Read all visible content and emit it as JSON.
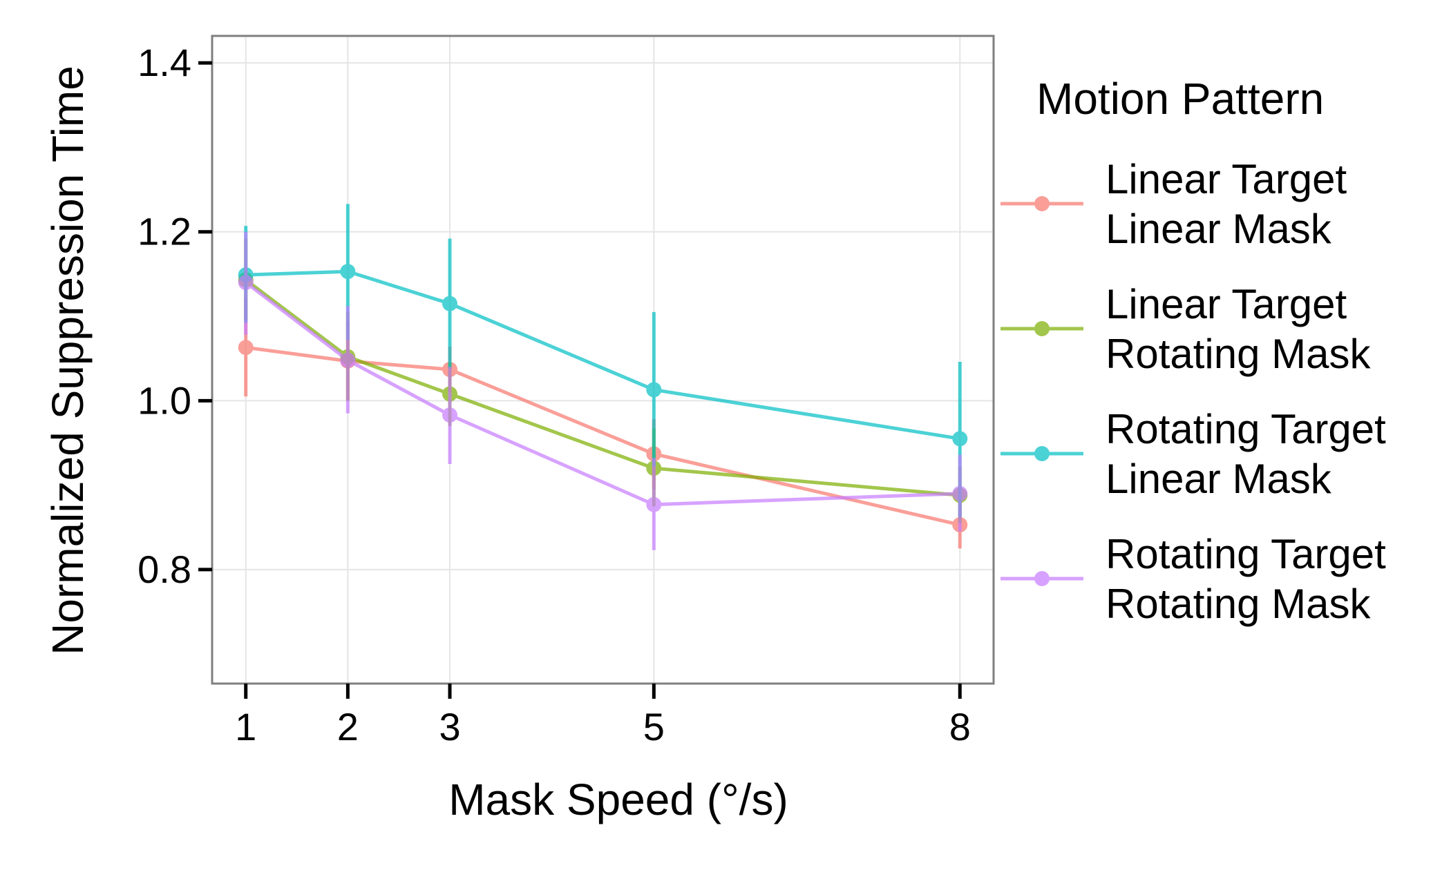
{
  "chart_data": {
    "type": "line",
    "xlabel": "Mask Speed (°/s)",
    "ylabel": "Normalized Suppression Time",
    "x": [
      1,
      2,
      3,
      5,
      8
    ],
    "x_tick_labels": [
      "1",
      "2",
      "3",
      "5",
      "8"
    ],
    "xlim": [
      0.67,
      8.33
    ],
    "ylim": [
      0.665,
      1.432
    ],
    "y_ticks": [
      0.8,
      1.0,
      1.2,
      1.4
    ],
    "y_tick_labels": [
      "0.8",
      "1.0",
      "1.2",
      "1.4"
    ],
    "grid": true,
    "legend": {
      "title": "Motion Pattern",
      "placement": "right"
    },
    "series": [
      {
        "name_lines": [
          "Linear Target",
          "Linear Mask"
        ],
        "color": "#F8766D",
        "values": [
          1.063,
          1.047,
          1.037,
          0.937,
          0.853
        ],
        "error_low": [
          1.005,
          1.0,
          1.01,
          0.895,
          0.825
        ],
        "error_high": [
          1.122,
          1.094,
          1.064,
          0.978,
          0.88
        ]
      },
      {
        "name_lines": [
          "Linear Target",
          "Rotating Mask"
        ],
        "color": "#7CAE00",
        "values": [
          1.143,
          1.052,
          1.008,
          0.92,
          0.888
        ],
        "error_low": [
          1.095,
          1.0,
          0.97,
          0.875,
          0.855
        ],
        "error_high": [
          1.192,
          1.105,
          1.045,
          0.967,
          0.922
        ]
      },
      {
        "name_lines": [
          "Rotating Target",
          "Linear Mask"
        ],
        "color": "#00BFC4",
        "values": [
          1.149,
          1.153,
          1.115,
          1.013,
          0.955
        ],
        "error_low": [
          1.092,
          1.072,
          1.038,
          0.922,
          0.862
        ],
        "error_high": [
          1.207,
          1.233,
          1.192,
          1.105,
          1.046
        ]
      },
      {
        "name_lines": [
          "Rotating Target",
          "Rotating Mask"
        ],
        "color": "#C77CFF",
        "values": [
          1.14,
          1.048,
          0.983,
          0.877,
          0.89
        ],
        "error_low": [
          1.078,
          0.985,
          0.925,
          0.823,
          0.845
        ],
        "error_high": [
          1.2,
          1.112,
          1.04,
          0.932,
          0.936
        ]
      }
    ]
  }
}
